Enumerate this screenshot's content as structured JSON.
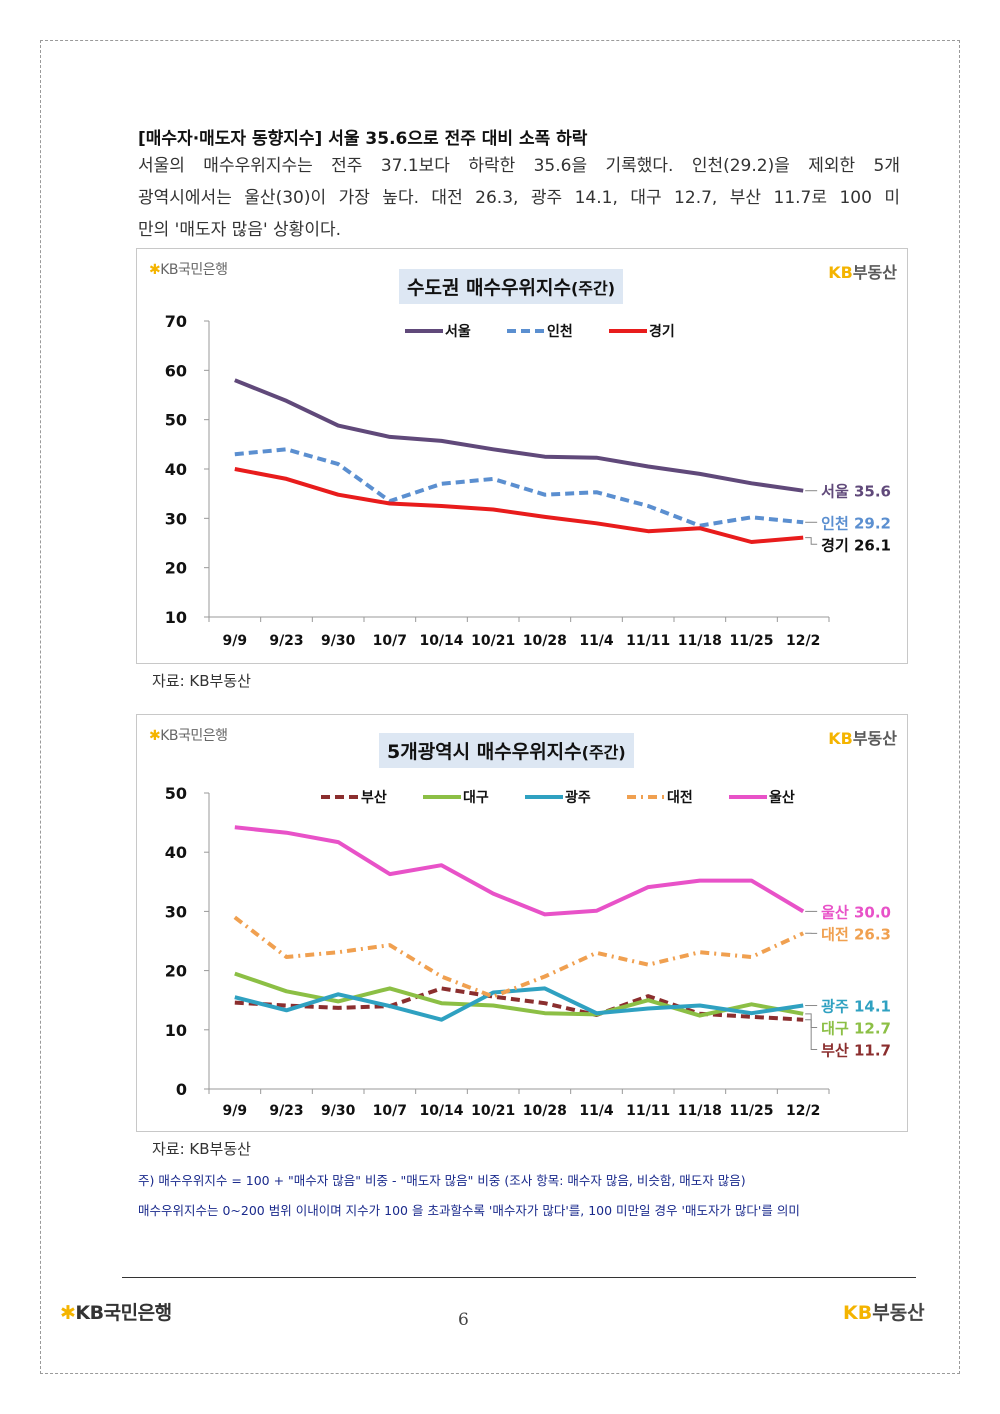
{
  "article": {
    "heading": "[매수자·매도자 동향지수] 서울 35.6으로 전주 대비 소폭 하락",
    "lines": [
      "서울의 매수우위지수는 전주 37.1보다 하락한 35.6을 기록했다. 인천(29.2)을 제외한 5개",
      "광역시에서는 울산(30)이 가장 높다. 대전 26.3, 광주 14.1, 대구 12.7, 부산 11.7로 100 미",
      "만의 '매도자 많음' 상황이다."
    ]
  },
  "branding": {
    "kb_bank_small": "KB국민은행",
    "kb_star": "✱",
    "kb_land_prefix": "KB",
    "kb_land_suffix": "부동산"
  },
  "source_label": "자료: KB부동산",
  "notes": [
    "주) 매수우위지수 = 100 + \"매수자 많음\" 비중 - \"매도자 많음\" 비중  (조사 항목: 매수자 많음, 비슷함, 매도자 많음)",
    "매수우위지수는 0~200 범위 이내이며 지수가 100 을 초과할수록 '매수자가 많다'를, 100 미만일 경우 '매도자가 많다'를 의미"
  ],
  "footer": {
    "kb_bank": "KB국민은행",
    "page_number": "6",
    "kb_land_prefix": "KB",
    "kb_land_suffix": "부동산"
  },
  "chart_data": [
    {
      "type": "line",
      "title": "수도권 매수우위지수",
      "title_suffix": "(주간)",
      "categories": [
        "9/9",
        "9/23",
        "9/30",
        "10/7",
        "10/14",
        "10/21",
        "10/28",
        "11/4",
        "11/11",
        "11/18",
        "11/25",
        "12/2"
      ],
      "ylim": [
        10,
        70
      ],
      "yticks": [
        10,
        20,
        30,
        40,
        50,
        60,
        70
      ],
      "legend_position": "top-center",
      "grid": false,
      "series": [
        {
          "name": "서울",
          "color": "#60497a",
          "dash": "solid",
          "values": [
            58,
            53.8,
            48.8,
            46.5,
            45.7,
            44,
            42.5,
            42.3,
            40.5,
            39,
            37.1,
            35.6
          ],
          "end_label": "서울 35.6"
        },
        {
          "name": "인천",
          "color": "#5b8fd0",
          "dash": "dashed",
          "values": [
            43,
            44,
            41,
            33.5,
            37,
            38,
            34.8,
            35.3,
            32.5,
            28.5,
            30.2,
            29.2
          ],
          "end_label": "인천 29.2"
        },
        {
          "name": "경기",
          "color": "#e81c1c",
          "dash": "solid",
          "values": [
            40,
            38,
            34.8,
            33,
            32.5,
            31.8,
            30.3,
            29,
            27.4,
            28,
            25.2,
            26.1
          ],
          "end_label": "경기 26.1",
          "end_label_color": "#111111"
        }
      ]
    },
    {
      "type": "line",
      "title": "5개광역시 매수우위지수",
      "title_suffix": "(주간)",
      "categories": [
        "9/9",
        "9/23",
        "9/30",
        "10/7",
        "10/14",
        "10/21",
        "10/28",
        "11/4",
        "11/11",
        "11/18",
        "11/25",
        "12/2"
      ],
      "ylim": [
        0,
        50
      ],
      "yticks": [
        0,
        10,
        20,
        30,
        40,
        50
      ],
      "legend_position": "top-center",
      "grid": false,
      "series": [
        {
          "name": "부산",
          "color": "#8b2e2e",
          "dash": "dashed",
          "values": [
            14.6,
            14.1,
            13.7,
            14,
            17,
            15.6,
            14.5,
            12.5,
            15.7,
            12.7,
            12.2,
            11.7
          ],
          "end_label": "부산 11.7"
        },
        {
          "name": "대구",
          "color": "#8cbf45",
          "dash": "solid",
          "values": [
            19.5,
            16.5,
            14.8,
            17,
            14.5,
            14.1,
            12.8,
            12.6,
            15,
            12.4,
            14.3,
            12.7
          ],
          "end_label": "대구 12.7"
        },
        {
          "name": "광주",
          "color": "#2fa1c1",
          "dash": "solid",
          "values": [
            15.5,
            13.3,
            16,
            14,
            11.7,
            16.3,
            17,
            12.8,
            13.6,
            14.1,
            12.8,
            14.1
          ],
          "end_label": "광주 14.1"
        },
        {
          "name": "대전",
          "color": "#f0a050",
          "dash": "dashdot",
          "values": [
            29,
            22.3,
            23.1,
            24.3,
            19,
            15.6,
            19,
            23,
            21,
            23.1,
            22.3,
            26.3
          ],
          "end_label": "대전 26.3"
        },
        {
          "name": "울산",
          "color": "#e852c8",
          "dash": "solid",
          "values": [
            44.2,
            43.3,
            41.7,
            36.3,
            37.8,
            33,
            29.5,
            30.1,
            34.1,
            35.2,
            35.2,
            30
          ],
          "end_label": "울산 30.0"
        }
      ]
    }
  ]
}
